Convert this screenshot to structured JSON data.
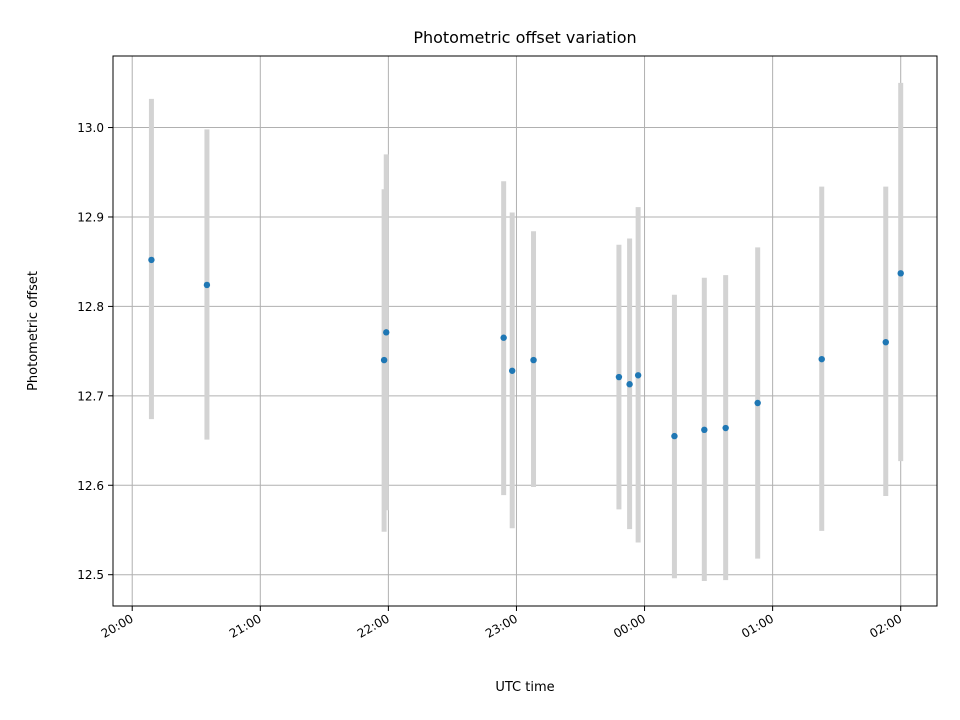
{
  "chart_data": {
    "type": "scatter",
    "title": "Photometric offset variation",
    "xlabel": "UTC time",
    "ylabel": "Photometric offset",
    "x_unit": "UTC time",
    "xlim": [
      "19:51",
      "02:17"
    ],
    "ylim": [
      12.465,
      13.08
    ],
    "grid": true,
    "x_ticks": [
      "20:00",
      "21:00",
      "22:00",
      "23:00",
      "00:00",
      "01:00",
      "02:00"
    ],
    "y_ticks": [
      "12.5",
      "12.6",
      "12.7",
      "12.8",
      "12.9",
      "13.0"
    ],
    "marker_color": "#1f77b4",
    "errorbar_color": "#d3d3d3",
    "points": [
      {
        "x": "20:09",
        "y": 12.852,
        "yerr_low": 12.674,
        "yerr_high": 13.032
      },
      {
        "x": "20:35",
        "y": 12.824,
        "yerr_low": 12.651,
        "yerr_high": 12.998
      },
      {
        "x": "21:58",
        "y": 12.74,
        "yerr_low": 12.548,
        "yerr_high": 12.931
      },
      {
        "x": "21:59",
        "y": 12.771,
        "yerr_low": 12.572,
        "yerr_high": 12.97
      },
      {
        "x": "22:54",
        "y": 12.765,
        "yerr_low": 12.589,
        "yerr_high": 12.94
      },
      {
        "x": "22:58",
        "y": 12.728,
        "yerr_low": 12.552,
        "yerr_high": 12.905
      },
      {
        "x": "23:08",
        "y": 12.74,
        "yerr_low": 12.598,
        "yerr_high": 12.884
      },
      {
        "x": "23:48",
        "y": 12.721,
        "yerr_low": 12.573,
        "yerr_high": 12.869
      },
      {
        "x": "23:53",
        "y": 12.713,
        "yerr_low": 12.551,
        "yerr_high": 12.876
      },
      {
        "x": "23:57",
        "y": 12.723,
        "yerr_low": 12.536,
        "yerr_high": 12.911
      },
      {
        "x": "00:14",
        "y": 12.655,
        "yerr_low": 12.496,
        "yerr_high": 12.813
      },
      {
        "x": "00:28",
        "y": 12.662,
        "yerr_low": 12.493,
        "yerr_high": 12.832
      },
      {
        "x": "00:38",
        "y": 12.664,
        "yerr_low": 12.494,
        "yerr_high": 12.835
      },
      {
        "x": "00:53",
        "y": 12.692,
        "yerr_low": 12.518,
        "yerr_high": 12.866
      },
      {
        "x": "01:23",
        "y": 12.741,
        "yerr_low": 12.549,
        "yerr_high": 12.934
      },
      {
        "x": "01:53",
        "y": 12.76,
        "yerr_low": 12.588,
        "yerr_high": 12.934
      },
      {
        "x": "02:00",
        "y": 12.837,
        "yerr_low": 12.627,
        "yerr_high": 13.05
      }
    ]
  }
}
